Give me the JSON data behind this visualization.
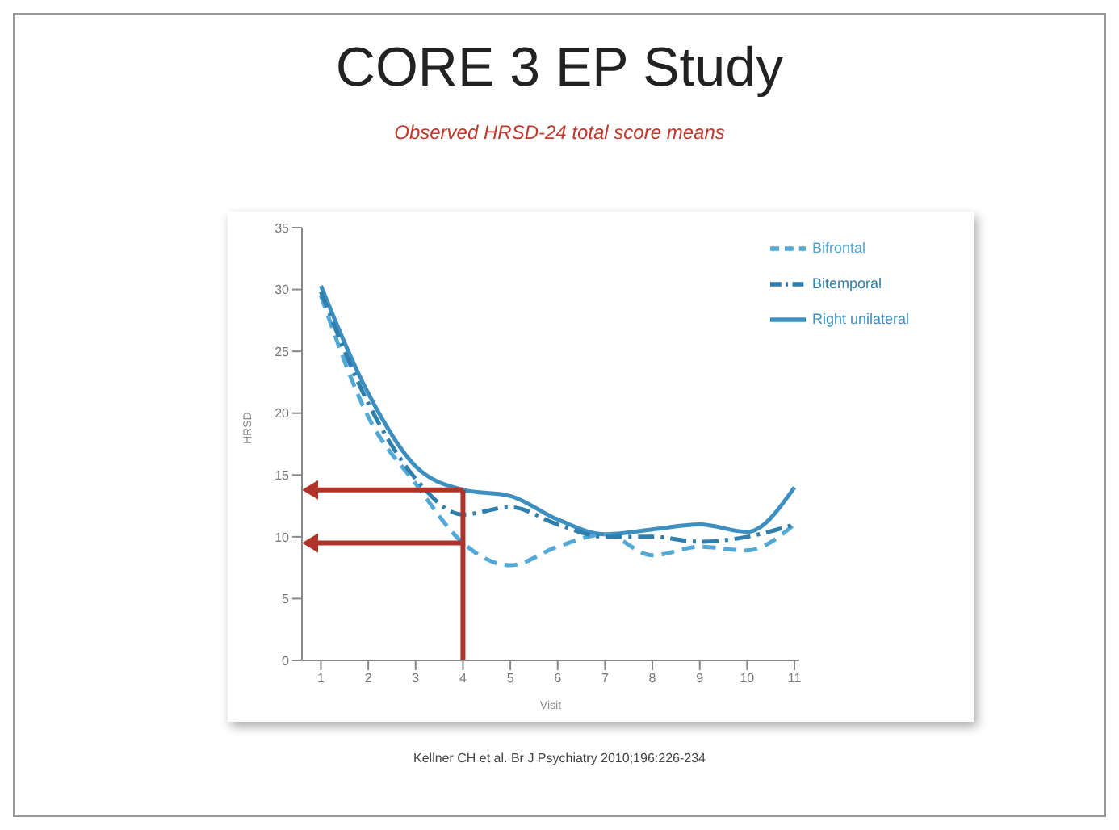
{
  "chart_data": {
    "type": "line",
    "title": "CORE 3 EP Study",
    "subtitle": "Observed HRSD-24 total score means",
    "xlabel": "Visit",
    "ylabel": "HRSD",
    "x": [
      1,
      2,
      3,
      4,
      5,
      6,
      7,
      8,
      9,
      10,
      11
    ],
    "series": [
      {
        "name": "Right unilateral",
        "color": "#3d8fc0",
        "line_style": "solid",
        "values": [
          30.3,
          21.6,
          15.7,
          13.8,
          13.3,
          11.4,
          10.2,
          10.6,
          11,
          10.4,
          14
        ]
      },
      {
        "name": "Bifrontal",
        "color": "#52a8d6",
        "line_style": "dashed",
        "values": [
          29.5,
          19.7,
          14.3,
          9.5,
          7.7,
          9.2,
          10.2,
          8.5,
          9.2,
          8.9,
          11
        ]
      },
      {
        "name": "Bitemporal",
        "color": "#2f7fae",
        "line_style": "dotted",
        "values": [
          29.8,
          20.8,
          14.7,
          11.8,
          12.4,
          11,
          10,
          10,
          9.6,
          10,
          11
        ]
      }
    ],
    "xlim": [
      0.6,
      11.1
    ],
    "xticks": [
      1,
      2,
      3,
      4,
      5,
      6,
      7,
      8,
      9,
      10,
      11
    ],
    "ylim": [
      0,
      35
    ],
    "yticks": [
      0,
      5,
      10,
      15,
      20,
      25,
      30,
      35
    ],
    "grid": false,
    "legend": "top right",
    "marker": "none",
    "annotations": [
      "Kellner CH et al. Br J Psychiatry 2010;196:226-234"
    ]
  }
}
